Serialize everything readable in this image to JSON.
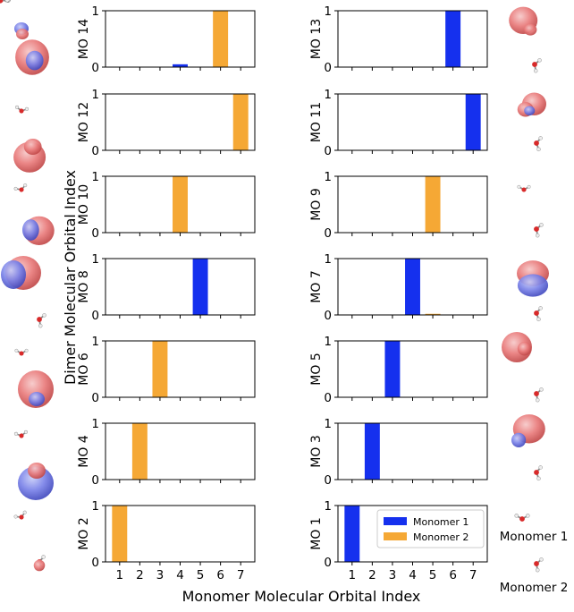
{
  "figure": {
    "ylabel": "Dimer Molecular Orbital Index",
    "xlabel": "Monomer Molecular Orbital Index",
    "right_labels": [
      "Monomer 1",
      "Monomer 2"
    ]
  },
  "colors": {
    "Monomer 1": "#1530ee",
    "Monomer 2": "#f5a835"
  },
  "chart_data": {
    "type": "bar",
    "categories": [
      "1",
      "2",
      "3",
      "4",
      "5",
      "6",
      "7"
    ],
    "ylim": [
      0,
      1
    ],
    "yticks": [
      "0",
      "1"
    ],
    "legend": {
      "location": "upper-right",
      "panel": "MO 1",
      "entries": [
        "Monomer 1",
        "Monomer 2"
      ]
    },
    "panels": [
      {
        "title": "MO 14",
        "values": [
          0,
          0,
          0,
          0.05,
          0,
          1,
          0
        ],
        "series": "Monomer 2",
        "small_series": {
          "3": "Monomer 1"
        }
      },
      {
        "title": "MO 13",
        "values": [
          0,
          0,
          0,
          0,
          0,
          1,
          0
        ],
        "series": "Monomer 1"
      },
      {
        "title": "MO 12",
        "values": [
          0,
          0,
          0,
          0,
          0,
          0,
          1
        ],
        "series": "Monomer 2"
      },
      {
        "title": "MO 11",
        "values": [
          0,
          0,
          0,
          0,
          0,
          0,
          1
        ],
        "series": "Monomer 1"
      },
      {
        "title": "MO 10",
        "values": [
          0,
          0,
          0,
          1,
          0,
          0,
          0
        ],
        "series": "Monomer 2"
      },
      {
        "title": "MO 9",
        "values": [
          0,
          0,
          0,
          0,
          1,
          0,
          0
        ],
        "series": "Monomer 2"
      },
      {
        "title": "MO 8",
        "values": [
          0,
          0,
          0,
          0,
          1,
          0,
          0
        ],
        "series": "Monomer 1"
      },
      {
        "title": "MO 7",
        "values": [
          0,
          0,
          0,
          1,
          0.02,
          0,
          0
        ],
        "series": "Monomer 1",
        "small_series": {
          "4": "Monomer 2"
        }
      },
      {
        "title": "MO 6",
        "values": [
          0,
          0,
          1,
          0,
          0,
          0,
          0
        ],
        "series": "Monomer 2"
      },
      {
        "title": "MO 5",
        "values": [
          0,
          0,
          1,
          0,
          0,
          0,
          0
        ],
        "series": "Monomer 1"
      },
      {
        "title": "MO 4",
        "values": [
          0,
          1,
          0,
          0,
          0,
          0,
          0
        ],
        "series": "Monomer 2"
      },
      {
        "title": "MO 3",
        "values": [
          0,
          1,
          0,
          0,
          0,
          0,
          0
        ],
        "series": "Monomer 1"
      },
      {
        "title": "MO 2",
        "values": [
          1,
          0,
          0,
          0,
          0,
          0,
          0
        ],
        "series": "Monomer 2"
      },
      {
        "title": "MO 1",
        "values": [
          1,
          0,
          0,
          0,
          0,
          0,
          0
        ],
        "series": "Monomer 1"
      }
    ]
  }
}
